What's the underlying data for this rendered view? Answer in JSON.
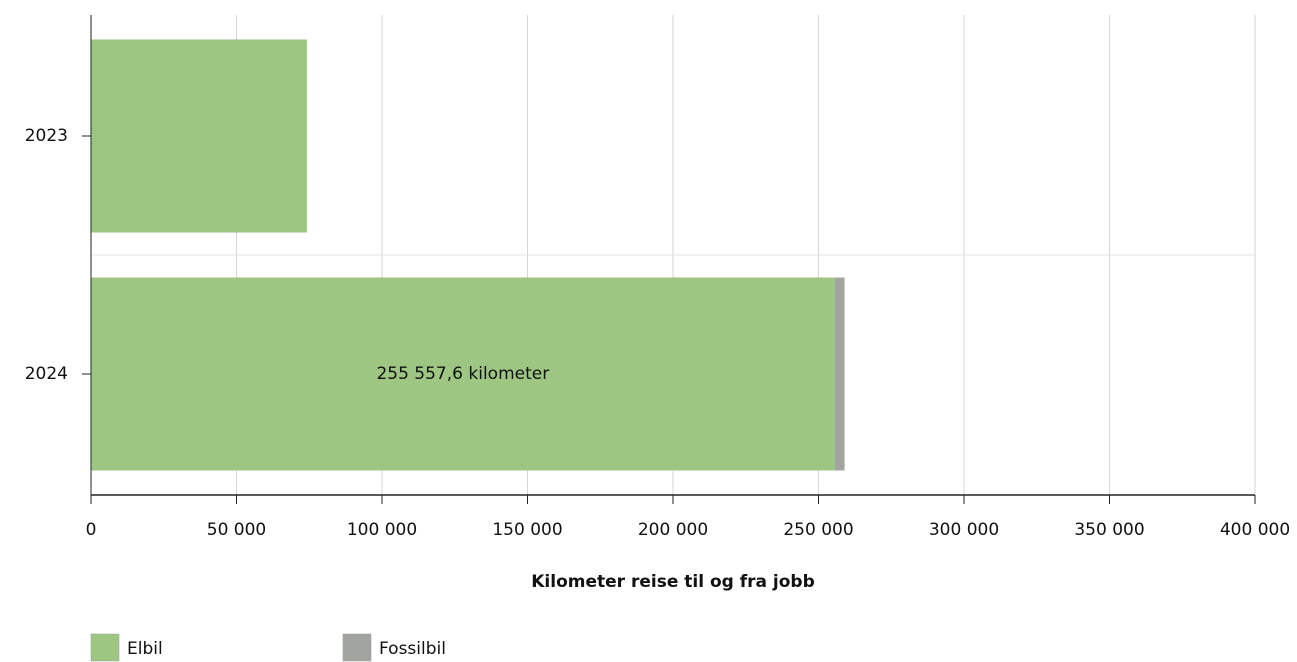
{
  "chart_data": {
    "type": "bar",
    "orientation": "horizontal",
    "stacked": true,
    "xlabel": "Kilometer reise til og fra jobb",
    "categories": [
      "2023",
      "2024"
    ],
    "series": [
      {
        "name": "Elbil",
        "color": "#9dc682",
        "values": [
          74200,
          255557.6
        ],
        "value_labels": [
          null,
          "255 557,6 kilometer"
        ]
      },
      {
        "name": "Fossilbil",
        "color": "#a2a49f",
        "values": [
          0,
          3400
        ]
      }
    ],
    "xlim": [
      0,
      400000
    ],
    "xticks": [
      0,
      {
        "value": 50000,
        "label": "50 000"
      },
      {
        "value": 100000,
        "label": "100 000"
      },
      {
        "value": 150000,
        "label": "150 000"
      },
      {
        "value": 200000,
        "label": "200 000"
      },
      {
        "value": 250000,
        "label": "250 000"
      },
      {
        "value": 300000,
        "label": "300 000"
      },
      {
        "value": 350000,
        "label": "350 000"
      },
      {
        "value": 400000,
        "label": "400 000"
      }
    ],
    "grid": true
  }
}
